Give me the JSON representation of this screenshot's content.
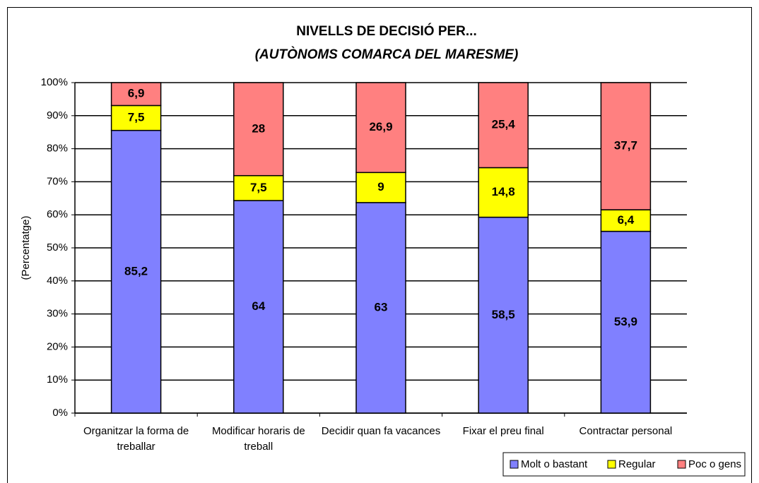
{
  "chart_data": {
    "type": "bar",
    "stacked": "percent",
    "title": "NIVELLS DE DECISIÓ PER...",
    "subtitle": "(AUTÒNOMS COMARCA DEL MARESME)",
    "y_label": "(Percentatge)",
    "categories": [
      "Organitzar la forma de treballar",
      "Modificar horaris de treball",
      "Decidir quan fa vacances",
      "Fixar el preu final",
      "Contractar personal"
    ],
    "series": [
      {
        "name": "Molt o bastant",
        "color": "#8080ff",
        "values": [
          85.2,
          64,
          63,
          58.5,
          53.9
        ],
        "value_labels": [
          "85,2",
          "64",
          "63",
          "58,5",
          "53,9"
        ]
      },
      {
        "name": "Regular",
        "color": "#ffff00",
        "values": [
          7.5,
          7.5,
          9,
          14.8,
          6.4
        ],
        "value_labels": [
          "7,5",
          "7,5",
          "9",
          "14,8",
          "6,4"
        ]
      },
      {
        "name": "Poc o gens",
        "color": "#ff8080",
        "values": [
          6.9,
          28,
          26.9,
          25.4,
          37.7
        ],
        "value_labels": [
          "6,9",
          "28",
          "26,9",
          "25,4",
          "37,7"
        ]
      }
    ],
    "ylim": [
      0,
      100
    ],
    "yticks": [
      {
        "value": 0,
        "label": "0%"
      },
      {
        "value": 10,
        "label": "10%"
      },
      {
        "value": 20,
        "label": "20%"
      },
      {
        "value": 30,
        "label": "30%"
      },
      {
        "value": 40,
        "label": "40%"
      },
      {
        "value": 50,
        "label": "50%"
      },
      {
        "value": 60,
        "label": "60%"
      },
      {
        "value": 70,
        "label": "70%"
      },
      {
        "value": 80,
        "label": "80%"
      },
      {
        "value": 90,
        "label": "90%"
      },
      {
        "value": 100,
        "label": "100%"
      }
    ],
    "grid": true,
    "legend": "bottom-right"
  }
}
